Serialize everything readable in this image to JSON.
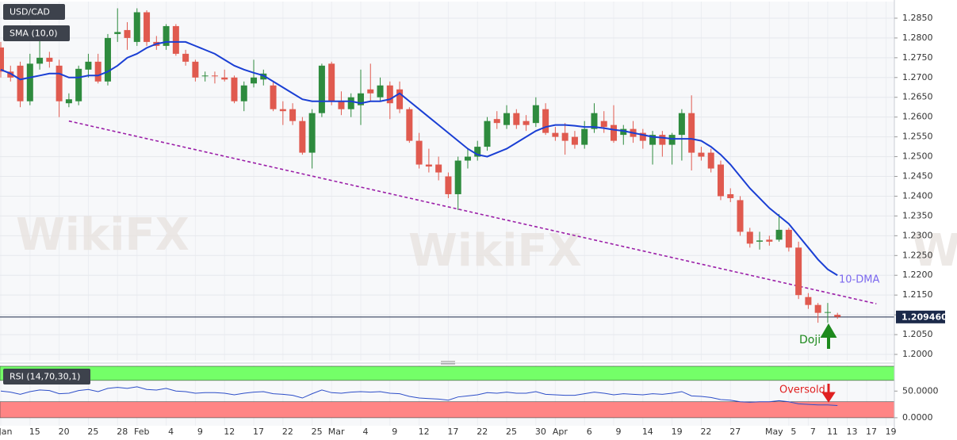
{
  "chart_data": {
    "type": "candlestick",
    "title": "USD/CAD",
    "watermark": "WikiFX",
    "categories": [
      "Jan",
      null,
      null,
      "15",
      null,
      null,
      "20",
      null,
      null,
      "25",
      null,
      null,
      "28",
      null,
      "Feb",
      null,
      null,
      "4",
      null,
      null,
      "9",
      null,
      null,
      "12",
      null,
      null,
      "17",
      null,
      null,
      "22",
      null,
      null,
      "25",
      null,
      "Mar",
      null,
      null,
      "4",
      null,
      null,
      "9",
      null,
      null,
      "12",
      null,
      null,
      "17",
      null,
      null,
      "22",
      null,
      null,
      "25",
      null,
      null,
      "30",
      null,
      "Apr",
      null,
      null,
      "6",
      null,
      null,
      "9",
      null,
      null,
      "14",
      null,
      null,
      "19",
      null,
      null,
      "22",
      null,
      null,
      "27",
      null,
      null,
      null,
      "May",
      null,
      "5",
      null,
      "7",
      null,
      "11",
      null,
      "13",
      null,
      "17",
      null,
      "19"
    ],
    "open": [
      1.2776,
      1.2715,
      1.273,
      1.264,
      1.2735,
      1.275,
      1.273,
      1.2635,
      1.264,
      1.272,
      1.274,
      1.269,
      1.281,
      1.282,
      1.279,
      1.2865,
      1.279,
      1.278,
      1.283,
      1.276,
      1.274,
      1.2705,
      1.2705,
      1.27,
      1.27,
      1.264,
      1.2685,
      1.2695,
      1.268,
      1.262,
      1.262,
      1.259,
      1.251,
      1.261,
      1.2735,
      1.264,
      1.262,
      1.263,
      1.267,
      1.265,
      1.268,
      1.267,
      1.262,
      1.254,
      1.248,
      1.248,
      1.245,
      1.2405,
      1.249,
      1.25,
      1.2525,
      1.2595,
      1.258,
      1.261,
      1.259,
      1.2585,
      1.262,
      1.256,
      1.256,
      1.255,
      1.253,
      1.257,
      1.259,
      1.258,
      1.2555,
      1.257,
      1.256,
      1.253,
      1.2555,
      1.253,
      1.2555,
      1.261,
      1.251,
      1.251,
      1.248,
      1.2405,
      1.239,
      1.231,
      1.2285,
      1.229,
      1.229,
      1.2315,
      1.227,
      1.2145,
      1.2125,
      1.2105,
      1.21,
      null,
      null,
      null,
      null,
      null
    ],
    "high": [
      1.279,
      1.273,
      1.274,
      1.276,
      1.28,
      1.2765,
      1.2745,
      1.266,
      1.273,
      1.276,
      1.276,
      1.281,
      1.2875,
      1.284,
      1.2875,
      1.287,
      1.2805,
      1.2835,
      1.2835,
      1.277,
      1.2745,
      1.2715,
      1.2715,
      1.272,
      1.2705,
      1.269,
      1.2745,
      1.272,
      1.269,
      1.264,
      1.2635,
      1.26,
      1.262,
      1.2735,
      1.274,
      1.2665,
      1.266,
      1.272,
      1.2735,
      1.27,
      1.269,
      1.269,
      1.2625,
      1.256,
      1.252,
      1.25,
      1.246,
      1.25,
      1.252,
      1.254,
      1.26,
      1.2615,
      1.263,
      1.262,
      1.2605,
      1.265,
      1.2635,
      1.2575,
      1.2585,
      1.2565,
      1.259,
      1.2635,
      1.2615,
      1.263,
      1.258,
      1.259,
      1.257,
      1.2565,
      1.2565,
      1.256,
      1.262,
      1.2655,
      1.2525,
      1.252,
      1.249,
      1.242,
      1.24,
      1.232,
      1.231,
      1.23,
      1.2355,
      1.232,
      1.2285,
      1.2155,
      1.213,
      1.213,
      1.2105,
      null,
      null,
      null,
      null,
      null
    ],
    "low": [
      1.27,
      1.269,
      1.2625,
      1.263,
      1.272,
      1.2725,
      1.26,
      1.2625,
      1.263,
      1.27,
      1.2685,
      1.268,
      1.279,
      1.277,
      1.278,
      1.278,
      1.277,
      1.277,
      1.2755,
      1.273,
      1.269,
      1.269,
      1.2685,
      1.269,
      1.2635,
      1.2615,
      1.2675,
      1.268,
      1.2615,
      1.258,
      1.258,
      1.2505,
      1.247,
      1.26,
      1.263,
      1.2605,
      1.26,
      1.258,
      1.264,
      1.264,
      1.2595,
      1.261,
      1.2535,
      1.247,
      1.246,
      1.244,
      1.2395,
      1.2365,
      1.247,
      1.249,
      1.2515,
      1.257,
      1.257,
      1.257,
      1.2565,
      1.2575,
      1.2555,
      1.254,
      1.2505,
      1.252,
      1.252,
      1.256,
      1.256,
      1.2535,
      1.253,
      1.2535,
      1.252,
      1.248,
      1.25,
      1.248,
      1.249,
      1.2465,
      1.249,
      1.246,
      1.239,
      1.2385,
      1.23,
      1.227,
      1.2265,
      1.2275,
      1.2285,
      1.226,
      1.214,
      1.2115,
      1.208,
      1.208,
      1.209,
      null,
      null,
      null,
      null,
      null
    ],
    "close": [
      1.2715,
      1.27,
      1.264,
      1.2735,
      1.275,
      1.274,
      1.264,
      1.2645,
      1.2722,
      1.274,
      1.269,
      1.28,
      1.2815,
      1.28,
      1.2865,
      1.279,
      1.278,
      1.283,
      1.276,
      1.274,
      1.27,
      1.2705,
      1.2703,
      1.2695,
      1.264,
      1.268,
      1.27,
      1.271,
      1.262,
      1.2615,
      1.259,
      1.251,
      1.261,
      1.273,
      1.264,
      1.262,
      1.265,
      1.266,
      1.266,
      1.268,
      1.2635,
      1.262,
      1.254,
      1.248,
      1.2475,
      1.246,
      1.2405,
      1.249,
      1.25,
      1.2525,
      1.259,
      1.2585,
      1.261,
      1.258,
      1.258,
      1.263,
      1.256,
      1.255,
      1.254,
      1.253,
      1.257,
      1.261,
      1.2575,
      1.254,
      1.257,
      1.255,
      1.254,
      1.2555,
      1.253,
      1.2555,
      1.261,
      1.251,
      1.25,
      1.247,
      1.24,
      1.2395,
      1.231,
      1.228,
      1.2288,
      1.2285,
      1.2315,
      1.227,
      1.215,
      1.2125,
      1.2105,
      1.2107,
      1.2095,
      null,
      null,
      null,
      null,
      null
    ],
    "up_color": "#2e8b3e",
    "down_color": "#e05a4f",
    "ylim": [
      1.1984,
      1.2892
    ],
    "yticks": [
      {
        "value": 1.2,
        "label": "1.2000"
      },
      {
        "value": 1.205,
        "label": "1.2050"
      },
      {
        "value": 1.21,
        "label": "1.2100"
      },
      {
        "value": 1.215,
        "label": "1.2150"
      },
      {
        "value": 1.22,
        "label": "1.2200"
      },
      {
        "value": 1.225,
        "label": "1.2250"
      },
      {
        "value": 1.23,
        "label": "1.2300"
      },
      {
        "value": 1.235,
        "label": "1.2350"
      },
      {
        "value": 1.24,
        "label": "1.2400"
      },
      {
        "value": 1.245,
        "label": "1.2450"
      },
      {
        "value": 1.25,
        "label": "1.2500"
      },
      {
        "value": 1.255,
        "label": "1.2550"
      },
      {
        "value": 1.26,
        "label": "1.2600"
      },
      {
        "value": 1.265,
        "label": "1.2650"
      },
      {
        "value": 1.27,
        "label": "1.2700"
      },
      {
        "value": 1.275,
        "label": "1.2750"
      },
      {
        "value": 1.28,
        "label": "1.2800"
      },
      {
        "value": 1.285,
        "label": "1.2850"
      }
    ],
    "grid": true,
    "last_price": {
      "value": 1.20946,
      "label": "1.209460",
      "color": "#1c2a4a"
    },
    "sma": {
      "name": "SMA (10,0)",
      "color": "#1a3fd4",
      "values": [
        1.272,
        1.271,
        1.2695,
        1.27,
        1.2705,
        1.271,
        1.271,
        1.27,
        1.27,
        1.2705,
        1.2705,
        1.2715,
        1.273,
        1.275,
        1.276,
        1.2775,
        1.2785,
        1.279,
        1.279,
        1.279,
        1.278,
        1.277,
        1.276,
        1.2745,
        1.273,
        1.272,
        1.2712,
        1.2705,
        1.269,
        1.2675,
        1.266,
        1.2645,
        1.264,
        1.264,
        1.264,
        1.264,
        1.264,
        1.2635,
        1.264,
        1.264,
        1.2645,
        1.266,
        1.264,
        1.262,
        1.26,
        1.258,
        1.256,
        1.254,
        1.252,
        1.2505,
        1.25,
        1.251,
        1.252,
        1.2535,
        1.255,
        1.2565,
        1.2575,
        1.258,
        1.258,
        1.2578,
        1.2575,
        1.2575,
        1.2572,
        1.2568,
        1.2565,
        1.256,
        1.2555,
        1.255,
        1.2548,
        1.2545,
        1.2545,
        1.2545,
        1.254,
        1.2525,
        1.2505,
        1.248,
        1.245,
        1.242,
        1.2395,
        1.237,
        1.235,
        1.233,
        1.23,
        1.227,
        1.224,
        1.2215,
        1.22,
        null,
        null,
        null,
        null,
        null
      ]
    },
    "trendline": {
      "color": "#9b1fa8",
      "points": [
        [
          7,
          1.259
        ],
        [
          90,
          1.2128
        ]
      ]
    },
    "annotations": {
      "sma_label": "10-DMA",
      "doji": "Doji",
      "oversold": "Oversold"
    },
    "rsi": {
      "name": "RSI (14,70,30,1)",
      "color": "#2d4ec8",
      "ylim": [
        -15,
        98
      ],
      "yticks": [
        {
          "value": 0,
          "label": "0.0000"
        },
        {
          "value": 50,
          "label": "50.0000"
        }
      ],
      "bands": [
        {
          "range": [
            70,
            100
          ],
          "color": "#74ff68"
        },
        {
          "range": [
            0,
            30
          ],
          "color": "#ff8585"
        }
      ],
      "values": [
        50,
        48,
        44,
        49,
        52,
        51,
        45,
        46,
        51,
        53,
        49,
        55,
        57,
        55,
        58,
        53,
        52,
        55,
        50,
        49,
        46,
        47,
        47,
        46,
        43,
        46,
        48,
        49,
        45,
        44,
        42,
        37,
        45,
        52,
        47,
        46,
        48,
        49,
        48,
        49,
        46,
        45,
        40,
        37,
        36,
        35,
        33,
        39,
        41,
        43,
        47,
        46,
        48,
        46,
        46,
        49,
        44,
        43,
        42,
        42,
        45,
        48,
        46,
        43,
        45,
        44,
        43,
        45,
        44,
        46,
        49,
        41,
        40,
        38,
        34,
        33,
        30,
        29,
        30,
        30,
        32,
        30,
        26,
        25,
        24,
        24,
        23,
        null,
        null,
        null,
        null,
        null
      ]
    }
  }
}
